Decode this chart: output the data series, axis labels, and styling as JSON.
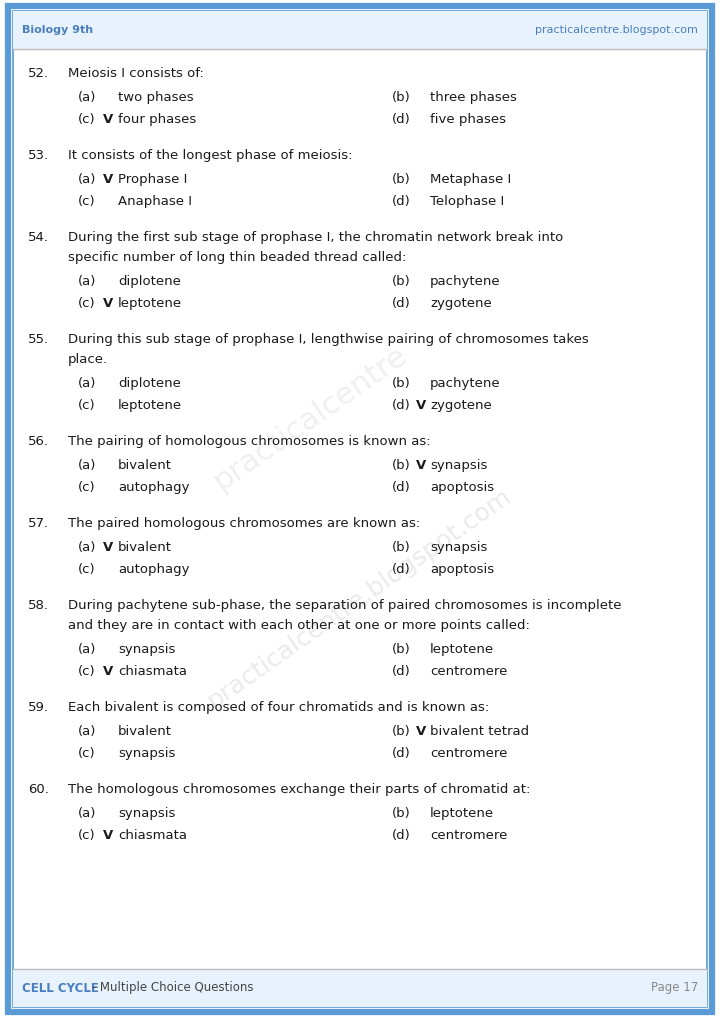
{
  "header_left": "Biology 9th",
  "header_right": "practicalcentre.blogspot.com",
  "footer_left_bold": "CELL CYCLE",
  "footer_left_rest": " - Multiple Choice Questions",
  "footer_right": "Page 17",
  "bg_color": "#ffffff",
  "border_color": "#5b9bd5",
  "header_bg_color": "#ddeeff",
  "footer_bg_color": "#ddeeff",
  "header_text_color": "#4a7ebf",
  "body_text_color": "#1a1a1a",
  "watermark_lines": [
    "practicalcentre.blogspot.com"
  ],
  "questions": [
    {
      "num": "52.",
      "text": "Meiosis I consists of:",
      "multiline": false,
      "options": [
        {
          "label": "(a)",
          "check": false,
          "text": "two phases"
        },
        {
          "label": "(b)",
          "check": false,
          "text": "three phases"
        },
        {
          "label": "(c)",
          "check": true,
          "text": "four phases"
        },
        {
          "label": "(d)",
          "check": false,
          "text": "five phases"
        }
      ]
    },
    {
      "num": "53.",
      "text": "It consists of the longest phase of meiosis:",
      "multiline": false,
      "options": [
        {
          "label": "(a)",
          "check": true,
          "text": "Prophase I"
        },
        {
          "label": "(b)",
          "check": false,
          "text": "Metaphase I"
        },
        {
          "label": "(c)",
          "check": false,
          "text": "Anaphase I"
        },
        {
          "label": "(d)",
          "check": false,
          "text": "Telophase I"
        }
      ]
    },
    {
      "num": "54.",
      "text": "During the first sub stage of prophase I, the chromatin network break into specific number of long thin beaded thread called:",
      "multiline": true,
      "options": [
        {
          "label": "(a)",
          "check": false,
          "text": "diplotene"
        },
        {
          "label": "(b)",
          "check": false,
          "text": "pachytene"
        },
        {
          "label": "(c)",
          "check": true,
          "text": "leptotene"
        },
        {
          "label": "(d)",
          "check": false,
          "text": "zygotene"
        }
      ]
    },
    {
      "num": "55.",
      "text": "During this sub stage of prophase I, lengthwise pairing of chromosomes takes place.",
      "multiline": false,
      "options": [
        {
          "label": "(a)",
          "check": false,
          "text": "diplotene"
        },
        {
          "label": "(b)",
          "check": false,
          "text": "pachytene"
        },
        {
          "label": "(c)",
          "check": false,
          "text": "leptotene"
        },
        {
          "label": "(d)",
          "check": true,
          "text": "zygotene"
        }
      ]
    },
    {
      "num": "56.",
      "text": "The pairing of homologous chromosomes is known as:",
      "multiline": false,
      "options": [
        {
          "label": "(a)",
          "check": false,
          "text": "bivalent"
        },
        {
          "label": "(b)",
          "check": true,
          "text": "synapsis"
        },
        {
          "label": "(c)",
          "check": false,
          "text": "autophagy"
        },
        {
          "label": "(d)",
          "check": false,
          "text": "apoptosis"
        }
      ]
    },
    {
      "num": "57.",
      "text": "The paired homologous chromosomes are known as:",
      "multiline": false,
      "options": [
        {
          "label": "(a)",
          "check": true,
          "text": "bivalent"
        },
        {
          "label": "(b)",
          "check": false,
          "text": "synapsis"
        },
        {
          "label": "(c)",
          "check": false,
          "text": "autophagy"
        },
        {
          "label": "(d)",
          "check": false,
          "text": "apoptosis"
        }
      ]
    },
    {
      "num": "58.",
      "text": "During pachytene sub-phase, the separation of paired chromosomes is incomplete and they are in contact with each other at one or more points called:",
      "multiline": true,
      "options": [
        {
          "label": "(a)",
          "check": false,
          "text": "synapsis"
        },
        {
          "label": "(b)",
          "check": false,
          "text": "leptotene"
        },
        {
          "label": "(c)",
          "check": true,
          "text": "chiasmata"
        },
        {
          "label": "(d)",
          "check": false,
          "text": "centromere"
        }
      ]
    },
    {
      "num": "59.",
      "text": "Each bivalent is composed of four chromatids and is known as:",
      "multiline": false,
      "options": [
        {
          "label": "(a)",
          "check": false,
          "text": "bivalent"
        },
        {
          "label": "(b)",
          "check": true,
          "text": "bivalent tetrad"
        },
        {
          "label": "(c)",
          "check": false,
          "text": "synapsis"
        },
        {
          "label": "(d)",
          "check": false,
          "text": "centromere"
        }
      ]
    },
    {
      "num": "60.",
      "text": "The homologous chromosomes exchange their parts of chromatid at:",
      "multiline": false,
      "options": [
        {
          "label": "(a)",
          "check": false,
          "text": "synapsis"
        },
        {
          "label": "(b)",
          "check": false,
          "text": "leptotene"
        },
        {
          "label": "(c)",
          "check": true,
          "text": "chiasmata"
        },
        {
          "label": "(d)",
          "check": false,
          "text": "centromere"
        }
      ]
    }
  ]
}
